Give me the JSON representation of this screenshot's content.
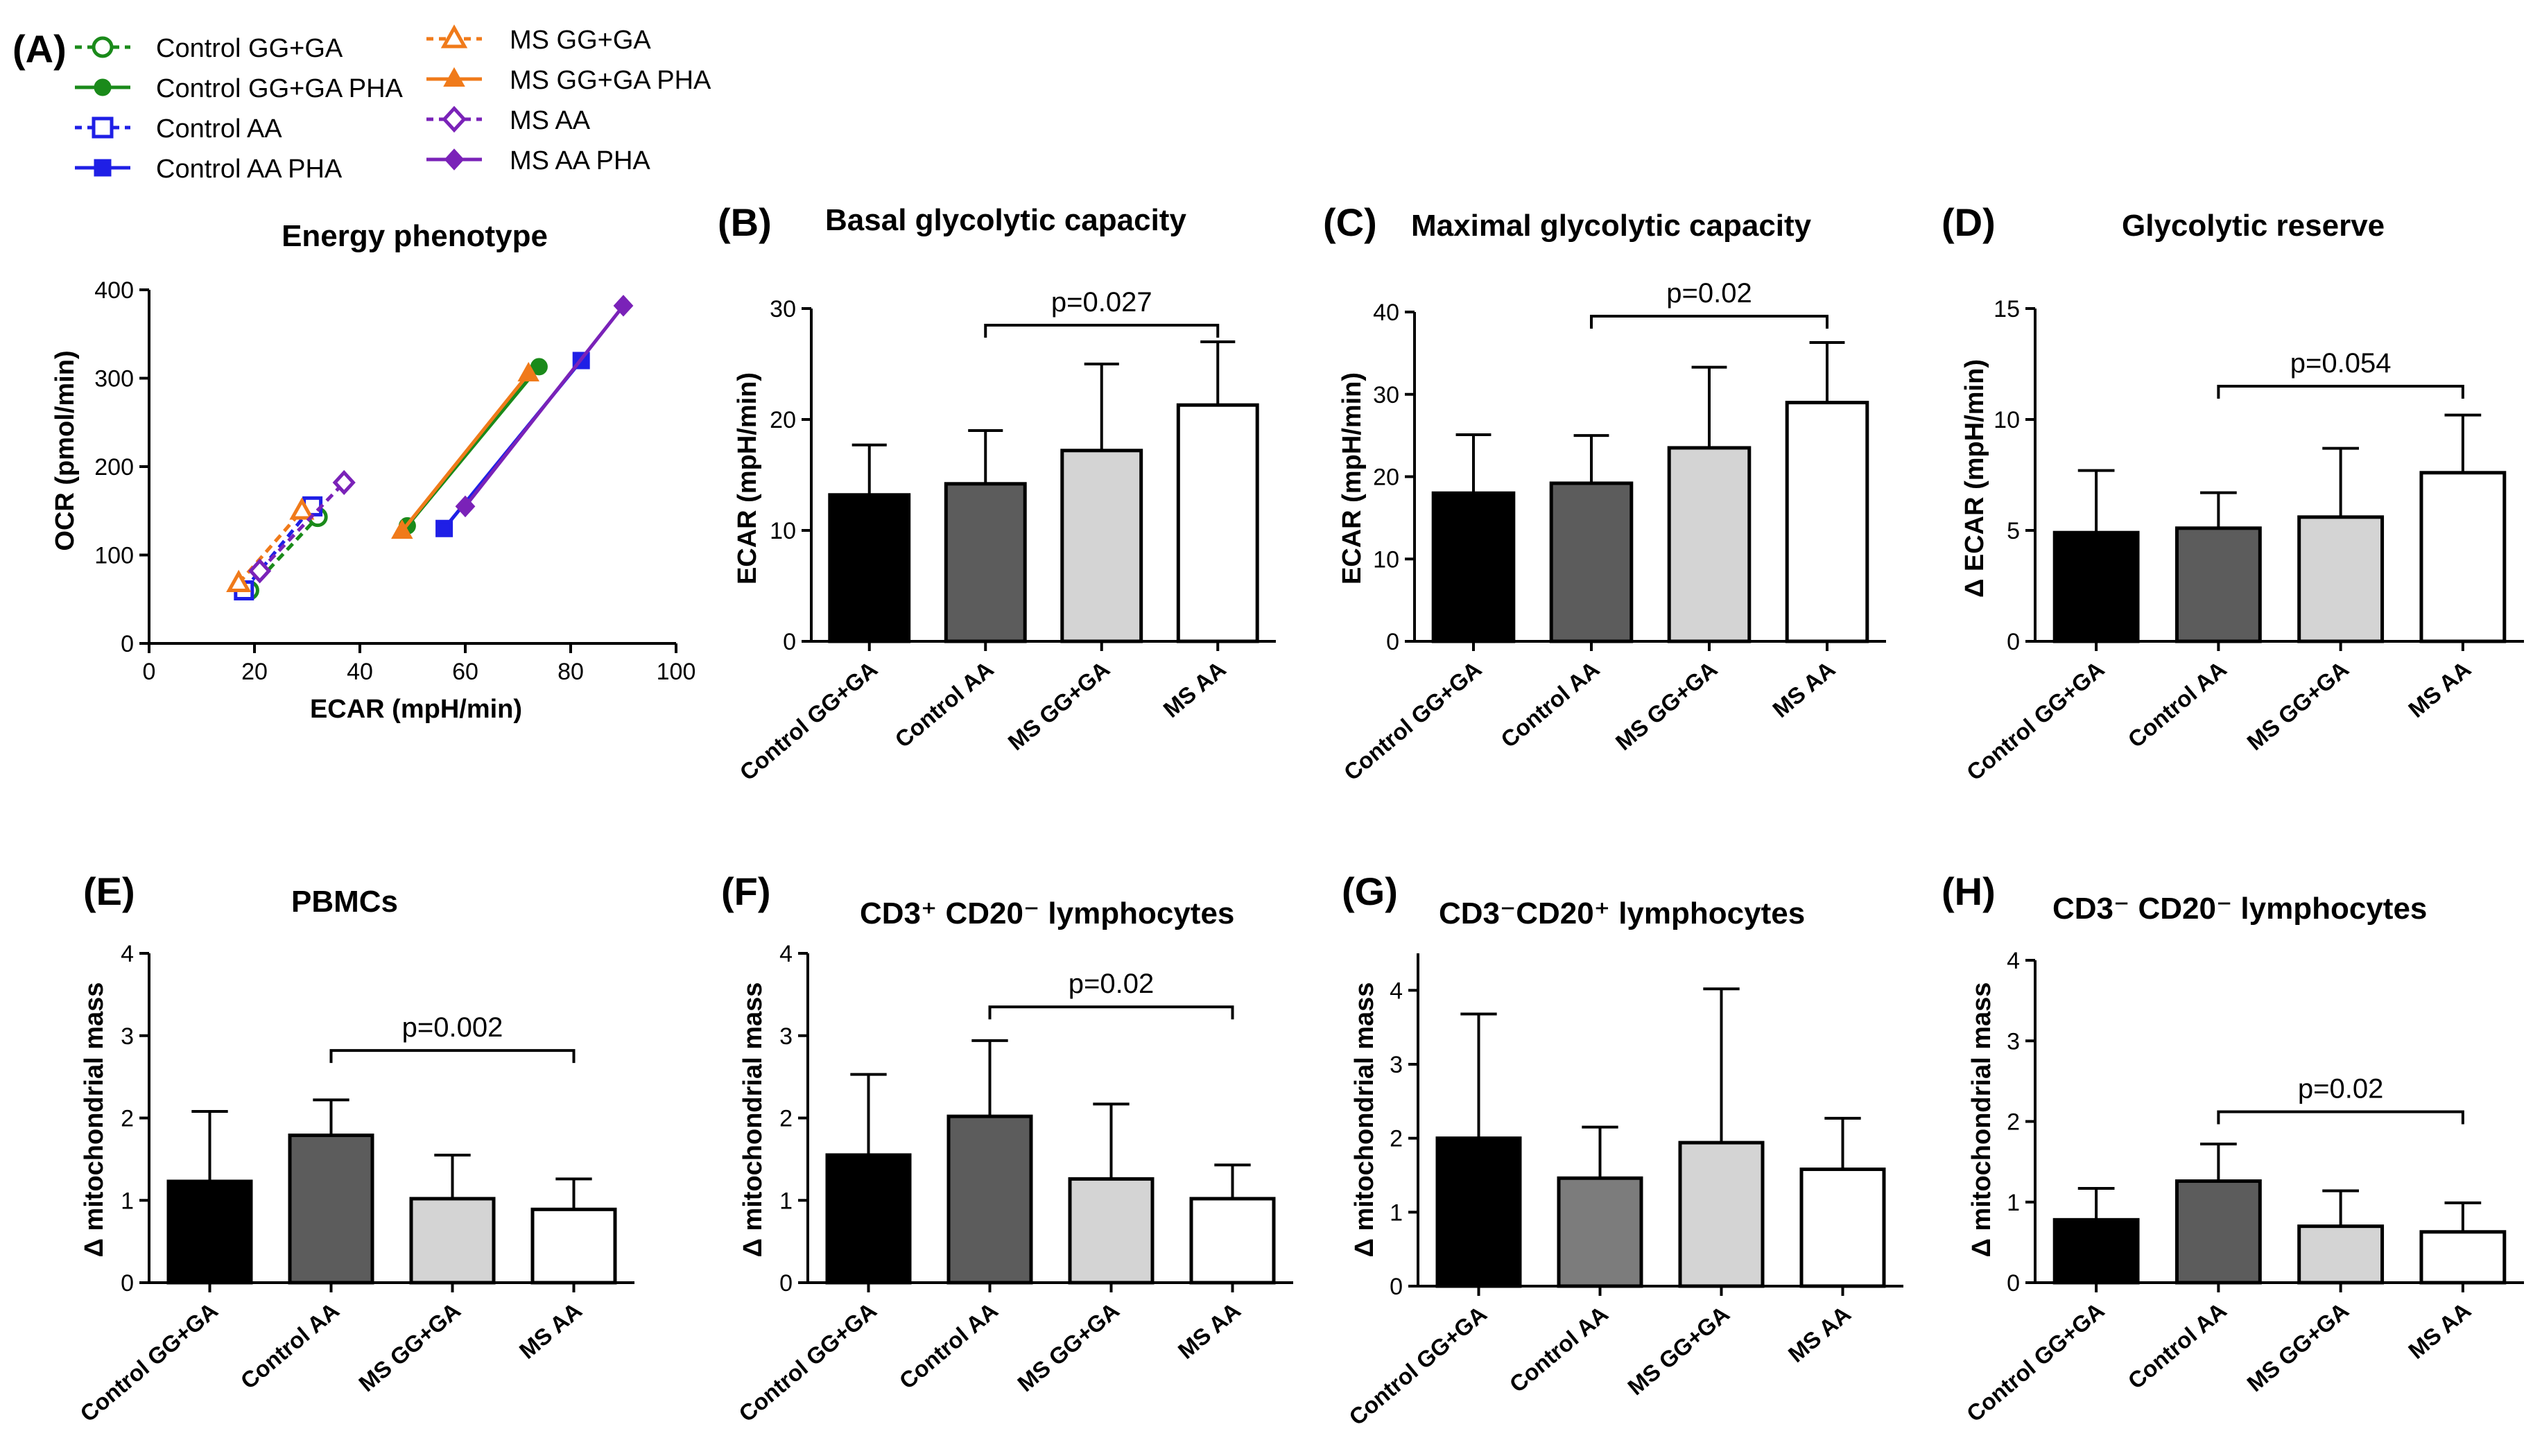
{
  "colors": {
    "control_gg_ga": "#1a8a1a",
    "control_aa": "#1f1fe6",
    "ms_gg_ga": "#f07a1a",
    "ms_aa": "#7a22b8",
    "bar_fills": [
      "#000000",
      "#5c5c5c",
      "#d4d4d4",
      "#ffffff"
    ],
    "bar_fills_G": [
      "#000000",
      "#7c7c7c",
      "#d4d4d4",
      "#ffffff"
    ]
  },
  "legend": {
    "items": [
      {
        "label": "Control GG+GA",
        "color": "#1a8a1a",
        "marker": "circle-open",
        "dashed": true
      },
      {
        "label": "Control GG+GA PHA",
        "color": "#1a8a1a",
        "marker": "circle",
        "dashed": false
      },
      {
        "label": "Control AA",
        "color": "#1f1fe6",
        "marker": "square-open",
        "dashed": true
      },
      {
        "label": "Control AA PHA",
        "color": "#1f1fe6",
        "marker": "square",
        "dashed": false
      },
      {
        "label": "MS GG+GA",
        "color": "#f07a1a",
        "marker": "triangle-open",
        "dashed": true
      },
      {
        "label": "MS GG+GA PHA",
        "color": "#f07a1a",
        "marker": "triangle",
        "dashed": false
      },
      {
        "label": "MS AA",
        "color": "#7a22b8",
        "marker": "diamond-open",
        "dashed": true
      },
      {
        "label": "MS AA PHA",
        "color": "#7a22b8",
        "marker": "diamond",
        "dashed": false
      }
    ]
  },
  "chart_data": [
    {
      "id": "A",
      "panel_label": "(A)",
      "type": "scatter",
      "title": "Energy phenotype",
      "xlabel": "ECAR (mpH/min)",
      "ylabel": "OCR (pmol/min)",
      "xlim": [
        0,
        100
      ],
      "ylim": [
        0,
        400
      ],
      "xticks": [
        0,
        20,
        40,
        60,
        80,
        100
      ],
      "yticks": [
        0,
        100,
        200,
        300,
        400
      ],
      "series": [
        {
          "name": "Control GG+GA",
          "color": "#1a8a1a",
          "marker": "circle",
          "dashed": true,
          "points": [
            [
              19,
              60
            ],
            [
              32,
              143
            ]
          ]
        },
        {
          "name": "Control GG+GA PHA",
          "color": "#1a8a1a",
          "marker": "circle",
          "dashed": false,
          "points": [
            [
              49,
              133
            ],
            [
              74,
              313
            ]
          ]
        },
        {
          "name": "Control AA",
          "color": "#1f1fe6",
          "marker": "square",
          "dashed": true,
          "points": [
            [
              18,
              60
            ],
            [
              31,
              155
            ]
          ]
        },
        {
          "name": "Control AA PHA",
          "color": "#1f1fe6",
          "marker": "square",
          "dashed": false,
          "points": [
            [
              56,
              130
            ],
            [
              82,
              320
            ]
          ]
        },
        {
          "name": "MS GG+GA",
          "color": "#f07a1a",
          "marker": "triangle",
          "dashed": true,
          "points": [
            [
              17,
              68
            ],
            [
              29,
              150
            ]
          ]
        },
        {
          "name": "MS GG+GA PHA",
          "color": "#f07a1a",
          "marker": "triangle",
          "dashed": false,
          "points": [
            [
              48,
              127
            ],
            [
              72,
              305
            ]
          ]
        },
        {
          "name": "MS AA",
          "color": "#7a22b8",
          "marker": "diamond",
          "dashed": true,
          "points": [
            [
              21,
              82
            ],
            [
              37,
              182
            ]
          ]
        },
        {
          "name": "MS AA PHA",
          "color": "#7a22b8",
          "marker": "diamond",
          "dashed": false,
          "points": [
            [
              60,
              155
            ],
            [
              90,
              382
            ]
          ]
        }
      ]
    },
    {
      "id": "B",
      "panel_label": "(B)",
      "type": "bar",
      "title": "Basal glycolytic capacity",
      "ylabel": "ECAR (mpH/min)",
      "categories": [
        "Control GG+GA",
        "Control AA",
        "MS GG+GA",
        "MS AA"
      ],
      "values": [
        13.2,
        14.2,
        17.2,
        21.3
      ],
      "errors": [
        4.5,
        4.8,
        7.8,
        5.7
      ],
      "ylim": [
        0,
        30
      ],
      "yticks": [
        0,
        10,
        20,
        30
      ],
      "significance": {
        "from": 1,
        "to": 3,
        "label": "p=0.027",
        "y": 28.5
      }
    },
    {
      "id": "C",
      "panel_label": "(C)",
      "type": "bar",
      "title": "Maximal glycolytic capacity",
      "ylabel": "ECAR (mpH/min)",
      "categories": [
        "Control GG+GA",
        "Control AA",
        "MS GG+GA",
        "MS AA"
      ],
      "values": [
        18.0,
        19.2,
        23.5,
        29.0
      ],
      "errors": [
        7.1,
        5.8,
        9.8,
        7.3
      ],
      "ylim": [
        0,
        40
      ],
      "yticks": [
        0,
        10,
        20,
        30,
        40
      ],
      "significance": {
        "from": 1,
        "to": 3,
        "label": "p=0.02",
        "y": 39.5
      }
    },
    {
      "id": "D",
      "panel_label": "(D)",
      "type": "bar",
      "title": "Glycolytic reserve",
      "ylabel": "Δ ECAR (mpH/min)",
      "categories": [
        "Control GG+GA",
        "Control AA",
        "MS GG+GA",
        "MS AA"
      ],
      "values": [
        4.9,
        5.1,
        5.6,
        7.6
      ],
      "errors": [
        2.8,
        1.6,
        3.1,
        2.6
      ],
      "ylim": [
        0,
        15
      ],
      "yticks": [
        0,
        5,
        10,
        15
      ],
      "significance": {
        "from": 1,
        "to": 3,
        "label": "p=0.054",
        "y": 11.5
      }
    },
    {
      "id": "E",
      "panel_label": "(E)",
      "type": "bar",
      "title": "PBMCs",
      "ylabel": "Δ mitochondrial mass",
      "categories": [
        "Control GG+GA",
        "Control AA",
        "MS GG+GA",
        "MS AA"
      ],
      "values": [
        1.23,
        1.79,
        1.02,
        0.89
      ],
      "errors": [
        0.85,
        0.43,
        0.53,
        0.37
      ],
      "ylim": [
        0,
        4
      ],
      "yticks": [
        0,
        1,
        2,
        3,
        4
      ],
      "significance": {
        "from": 1,
        "to": 3,
        "label": "p=0.002",
        "y": 2.82
      }
    },
    {
      "id": "F",
      "panel_label": "(F)",
      "type": "bar",
      "title": "CD3⁺ CD20⁻ lymphocytes",
      "ylabel": "Δ mitochondrial mass",
      "categories": [
        "Control GG+GA",
        "Control AA",
        "MS GG+GA",
        "MS AA"
      ],
      "values": [
        1.55,
        2.02,
        1.26,
        1.02
      ],
      "errors": [
        0.98,
        0.92,
        0.91,
        0.41
      ],
      "ylim": [
        0,
        4
      ],
      "yticks": [
        0,
        1,
        2,
        3,
        4
      ],
      "significance": {
        "from": 1,
        "to": 3,
        "label": "p=0.02",
        "y": 3.35
      }
    },
    {
      "id": "G",
      "panel_label": "(G)",
      "type": "bar",
      "title": "CD3⁻CD20⁺ lymphocytes",
      "ylabel": "Δ mitochondrial mass",
      "categories": [
        "Control GG+GA",
        "Control AA",
        "MS GG+GA",
        "MS AA"
      ],
      "values": [
        2.0,
        1.46,
        1.94,
        1.58
      ],
      "errors": [
        1.68,
        0.69,
        2.08,
        0.69
      ],
      "ylim": [
        0,
        4.5
      ],
      "yticks": [
        0,
        1,
        2,
        3,
        4
      ]
    },
    {
      "id": "H",
      "panel_label": "(H)",
      "type": "bar",
      "title": "CD3⁻ CD20⁻ lymphocytes",
      "ylabel": "Δ mitochondrial mass",
      "categories": [
        "Control GG+GA",
        "Control AA",
        "MS GG+GA",
        "MS AA"
      ],
      "values": [
        0.78,
        1.26,
        0.7,
        0.63
      ],
      "errors": [
        0.39,
        0.46,
        0.44,
        0.36
      ],
      "ylim": [
        0,
        4
      ],
      "yticks": [
        0,
        1,
        2,
        3,
        4
      ],
      "significance": {
        "from": 1,
        "to": 3,
        "label": "p=0.02",
        "y": 2.12
      }
    }
  ]
}
